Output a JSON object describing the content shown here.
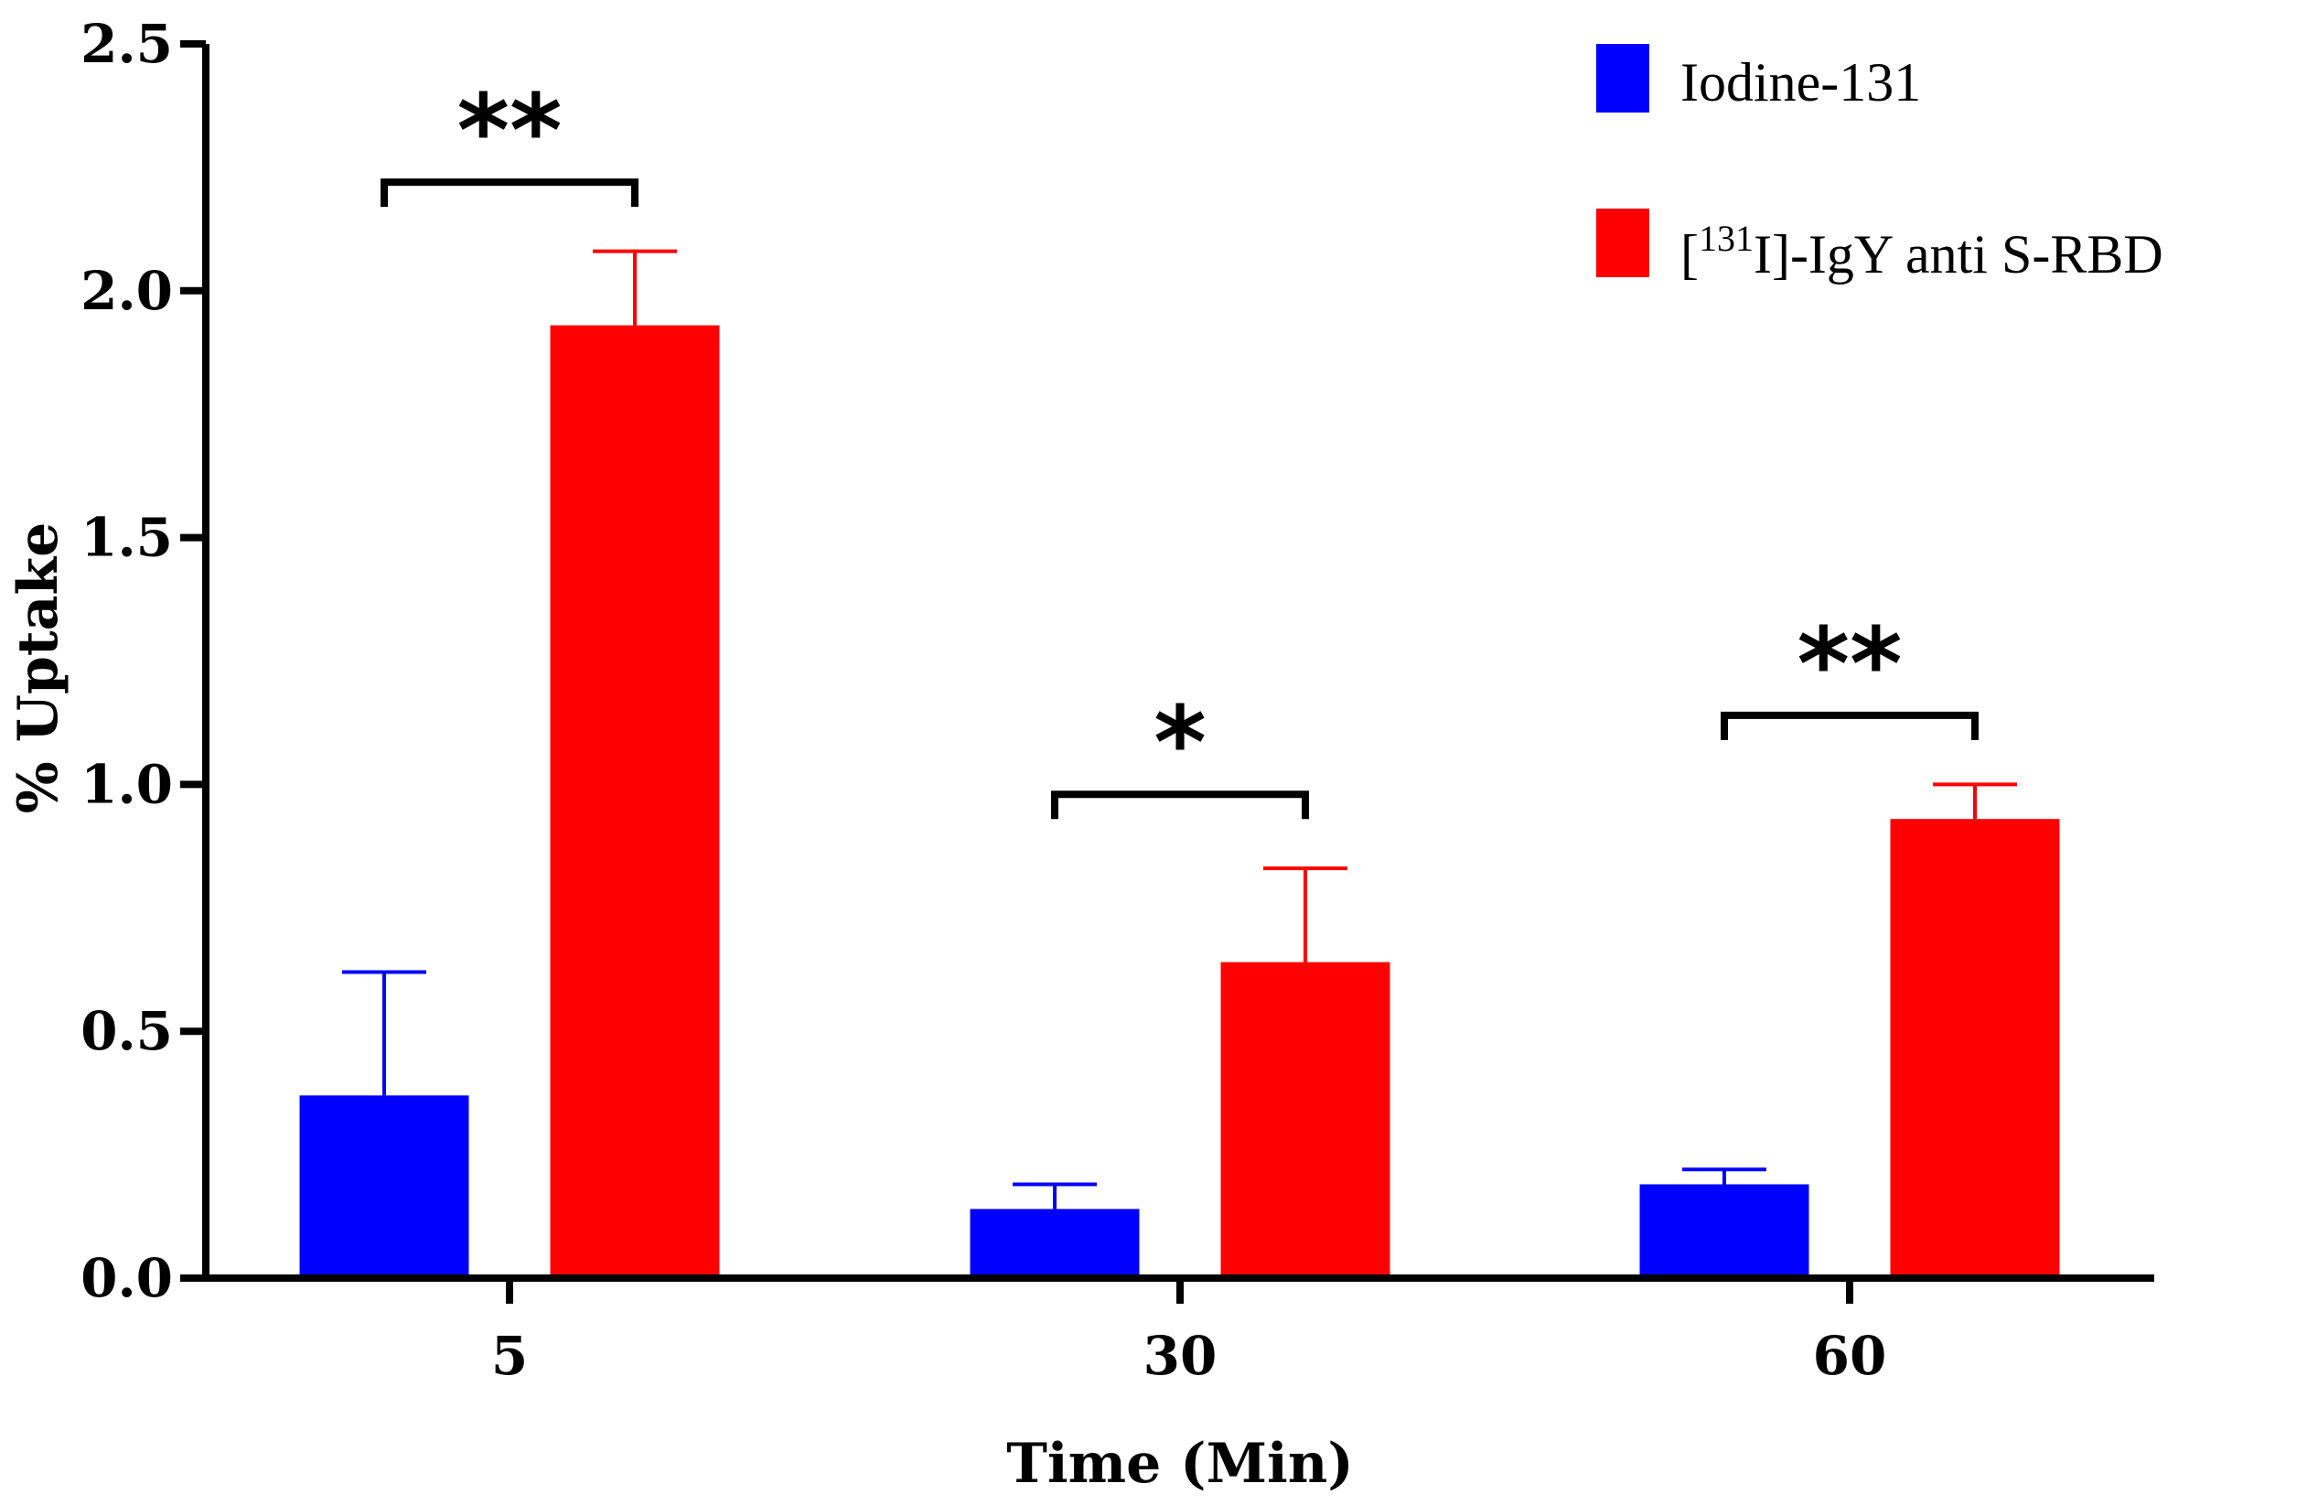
{
  "chart_data": {
    "type": "bar",
    "title": "",
    "xlabel": "Time (Min)",
    "ylabel": "% Uptake",
    "categories": [
      "5",
      "30",
      "60"
    ],
    "ylim": [
      0,
      2.5
    ],
    "yticks": [
      "0.0",
      "0.5",
      "1.0",
      "1.5",
      "2.0",
      "2.5"
    ],
    "legend_position": "top-right",
    "series": [
      {
        "name": "Iodine-131",
        "color": "#0000ff",
        "values": [
          0.37,
          0.14,
          0.19
        ],
        "errors": [
          0.25,
          0.05,
          0.03
        ]
      },
      {
        "name": "[131I]-IgY anti S-RBD",
        "name_prefix": "[",
        "name_sup": "131",
        "name_suffix": "I]-IgY anti S-RBD",
        "color": "#ff0000",
        "values": [
          1.93,
          0.64,
          0.93
        ],
        "errors": [
          0.15,
          0.19,
          0.07
        ]
      }
    ],
    "significance": [
      {
        "category": "5",
        "label": "**",
        "bracket_y": 2.22
      },
      {
        "category": "30",
        "label": "*",
        "bracket_y": 0.98
      },
      {
        "category": "60",
        "label": "**",
        "bracket_y": 1.14
      }
    ]
  }
}
